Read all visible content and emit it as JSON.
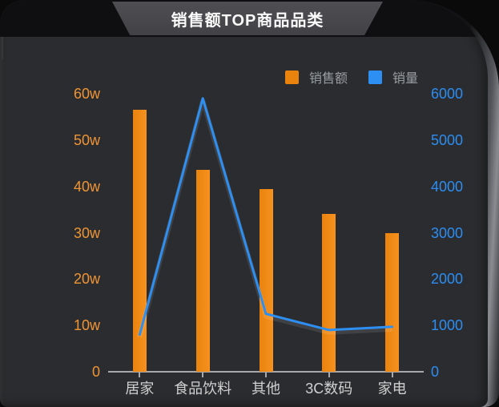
{
  "header": {
    "title": "销售额TOP商品品类"
  },
  "colors": {
    "orange": "#ea830e",
    "orange_label": "#ef9434",
    "blue": "#2e8ff2",
    "blue_label": "#2d8df0",
    "axis_line": "#a8a8aa",
    "x_label": "#d0d0d0",
    "legend_text": "#9a9ea3"
  },
  "chart_data": {
    "type": "bar",
    "title": "销售额TOP商品品类",
    "categories": [
      "居家",
      "食品饮料",
      "其他",
      "3C数码",
      "家电"
    ],
    "series": [
      {
        "name": "销售额",
        "type": "bar",
        "axis": "left",
        "unit": "w(万)",
        "color": "#ea830e",
        "values": [
          56.5,
          43.5,
          39.5,
          34,
          30
        ]
      },
      {
        "name": "销量",
        "type": "line",
        "axis": "right",
        "color": "#2e8ff2",
        "values": [
          800,
          5900,
          1250,
          900,
          970
        ]
      }
    ],
    "left_axis": {
      "ticks": [
        "0",
        "10w",
        "20w",
        "30w",
        "40w",
        "50w",
        "60w"
      ],
      "min": 0,
      "max": 60,
      "color": "#ef9434"
    },
    "right_axis": {
      "ticks": [
        "0",
        "1000",
        "2000",
        "3000",
        "4000",
        "5000",
        "6000"
      ],
      "min": 0,
      "max": 6000,
      "color": "#2d8df0"
    },
    "legend": {
      "entries": [
        "销售额",
        "销量"
      ],
      "position": "top-right"
    },
    "grid": "off"
  }
}
